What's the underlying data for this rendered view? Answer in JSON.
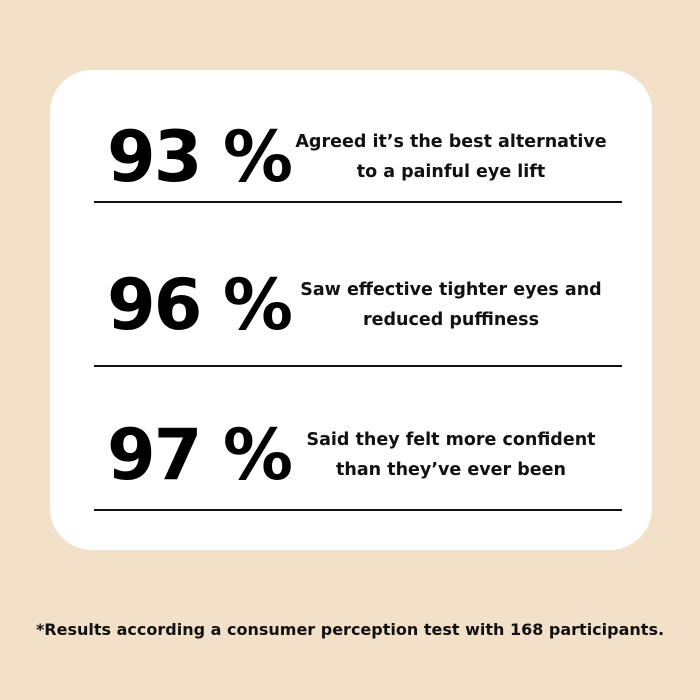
{
  "stats": [
    {
      "value": "93 %",
      "text_line1": "Agreed it’s the best alternative",
      "text_line2": "to a painful eye lift"
    },
    {
      "value": "96 %",
      "text_line1": "Saw effective tighter eyes and",
      "text_line2": "reduced puffiness"
    },
    {
      "value": "97 %",
      "text_line1": "Said they felt more confident",
      "text_line2": "than they’ve ever been"
    }
  ],
  "footnote": "*Results according a consumer perception test with 168 participants.",
  "colors": {
    "background": "#f2e1c8",
    "card": "#ffffff",
    "text": "#000000"
  }
}
